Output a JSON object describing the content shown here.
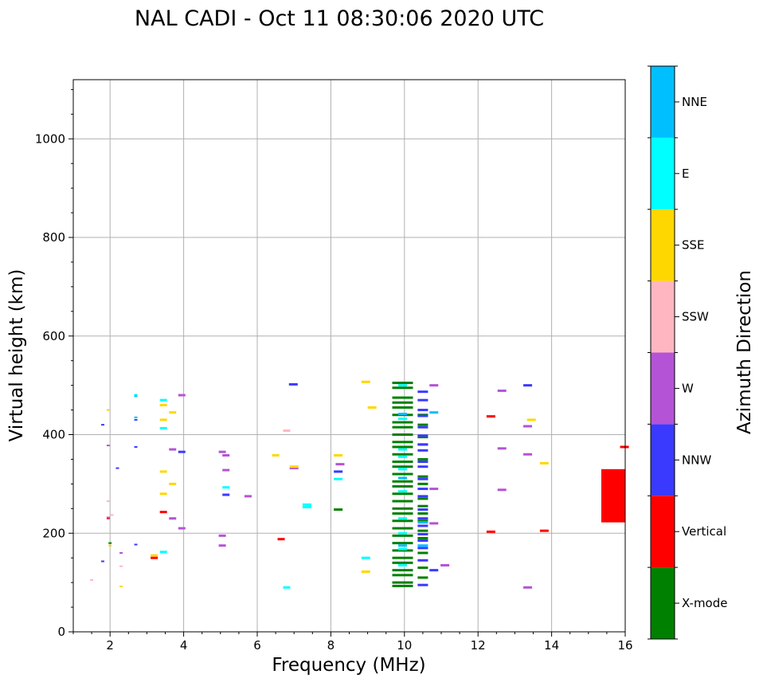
{
  "chart_data": {
    "type": "scatter",
    "title": "NAL CADI - Oct 11 08:30:06 2020 UTC",
    "xlabel": "Frequency (MHz)",
    "ylabel": "Virtual height (km)",
    "xlim": [
      1,
      16
    ],
    "ylim": [
      0,
      1120
    ],
    "xticks": [
      2,
      4,
      6,
      8,
      10,
      12,
      14,
      16
    ],
    "yticks": [
      0,
      200,
      400,
      600,
      800,
      1000
    ],
    "grid": true,
    "colorbar": {
      "label": "Azimuth Direction",
      "categories": [
        {
          "name": "X-mode",
          "color": "#008000"
        },
        {
          "name": "Vertical",
          "color": "#ff0000"
        },
        {
          "name": "NNW",
          "color": "#3a3aff"
        },
        {
          "name": "W",
          "color": "#b553d6"
        },
        {
          "name": "SSW",
          "color": "#ffb6c1"
        },
        {
          "name": "SSE",
          "color": "#ffd700"
        },
        {
          "name": "E",
          "color": "#00ffff"
        },
        {
          "name": "NNE",
          "color": "#00bfff"
        }
      ]
    },
    "series": [
      {
        "category": "X-mode",
        "points": [
          [
            9.95,
            505
          ],
          [
            9.95,
            495
          ],
          [
            9.95,
            475
          ],
          [
            9.95,
            465
          ],
          [
            9.95,
            455
          ],
          [
            9.95,
            440
          ],
          [
            9.95,
            425
          ],
          [
            9.95,
            415
          ],
          [
            9.95,
            400
          ],
          [
            9.95,
            385
          ],
          [
            9.95,
            375
          ],
          [
            9.95,
            360
          ],
          [
            9.95,
            345
          ],
          [
            9.95,
            335
          ],
          [
            9.95,
            320
          ],
          [
            9.95,
            305
          ],
          [
            9.95,
            295
          ],
          [
            9.95,
            280
          ],
          [
            9.95,
            265
          ],
          [
            9.95,
            250
          ],
          [
            9.95,
            240
          ],
          [
            9.95,
            225
          ],
          [
            9.95,
            210
          ],
          [
            9.95,
            195
          ],
          [
            9.95,
            180
          ],
          [
            9.95,
            165
          ],
          [
            9.95,
            150
          ],
          [
            9.95,
            140
          ],
          [
            9.95,
            125
          ],
          [
            9.95,
            115
          ],
          [
            9.95,
            100
          ],
          [
            9.95,
            93
          ],
          [
            10.5,
            440
          ],
          [
            10.5,
            420
          ],
          [
            10.5,
            395
          ],
          [
            10.5,
            380
          ],
          [
            10.5,
            350
          ],
          [
            10.5,
            315
          ],
          [
            10.5,
            300
          ],
          [
            10.5,
            270
          ],
          [
            10.5,
            255
          ],
          [
            10.5,
            240
          ],
          [
            10.5,
            225
          ],
          [
            10.5,
            205
          ],
          [
            10.5,
            190
          ],
          [
            10.5,
            160
          ],
          [
            10.5,
            130
          ],
          [
            10.5,
            110
          ],
          [
            8.2,
            248
          ],
          [
            2.0,
            180
          ]
        ]
      },
      {
        "category": "Vertical",
        "points": [
          [
            12.35,
            437
          ],
          [
            6.65,
            188
          ],
          [
            13.8,
            205
          ],
          [
            12.35,
            203
          ],
          [
            3.45,
            243
          ],
          [
            1.95,
            230
          ],
          [
            3.2,
            150
          ],
          [
            15.98,
            375
          ]
        ]
      },
      {
        "category": "NNW",
        "points": [
          [
            6.98,
            502
          ],
          [
            13.35,
            500
          ],
          [
            10.5,
            487
          ],
          [
            10.5,
            470
          ],
          [
            10.5,
            450
          ],
          [
            10.5,
            438
          ],
          [
            10.5,
            415
          ],
          [
            10.5,
            398
          ],
          [
            10.5,
            380
          ],
          [
            10.5,
            368
          ],
          [
            10.5,
            345
          ],
          [
            10.5,
            335
          ],
          [
            10.5,
            310
          ],
          [
            10.5,
            290
          ],
          [
            10.5,
            275
          ],
          [
            10.5,
            248
          ],
          [
            10.5,
            230
          ],
          [
            10.5,
            215
          ],
          [
            10.5,
            198
          ],
          [
            10.5,
            185
          ],
          [
            10.5,
            170
          ],
          [
            10.5,
            145
          ],
          [
            10.5,
            95
          ],
          [
            10.8,
            125
          ],
          [
            8.2,
            325
          ],
          [
            5.15,
            278
          ],
          [
            2.7,
            375
          ],
          [
            2.7,
            430
          ],
          [
            2.2,
            332
          ],
          [
            3.95,
            365
          ],
          [
            1.8,
            420
          ],
          [
            2.7,
            177
          ],
          [
            1.8,
            143
          ]
        ]
      },
      {
        "category": "W",
        "points": [
          [
            10.8,
            500
          ],
          [
            12.65,
            489
          ],
          [
            13.35,
            417
          ],
          [
            13.35,
            360
          ],
          [
            12.65,
            372
          ],
          [
            12.65,
            288
          ],
          [
            10.8,
            290
          ],
          [
            10.8,
            220
          ],
          [
            11.1,
            135
          ],
          [
            13.35,
            90
          ],
          [
            8.25,
            340
          ],
          [
            7.0,
            332
          ],
          [
            5.75,
            275
          ],
          [
            5.05,
            365
          ],
          [
            5.15,
            358
          ],
          [
            5.15,
            328
          ],
          [
            5.05,
            195
          ],
          [
            5.05,
            175
          ],
          [
            3.7,
            370
          ],
          [
            3.7,
            230
          ],
          [
            3.95,
            480
          ],
          [
            3.95,
            210
          ],
          [
            2.3,
            160
          ],
          [
            1.95,
            232
          ],
          [
            1.95,
            378
          ]
        ]
      },
      {
        "category": "SSW",
        "points": [
          [
            6.8,
            408
          ],
          [
            2.05,
            237
          ],
          [
            1.5,
            105
          ],
          [
            2.3,
            133
          ],
          [
            1.95,
            265
          ]
        ]
      },
      {
        "category": "SSE",
        "points": [
          [
            8.95,
            507
          ],
          [
            9.12,
            455
          ],
          [
            13.45,
            430
          ],
          [
            13.8,
            342
          ],
          [
            8.2,
            358
          ],
          [
            6.5,
            358
          ],
          [
            7.0,
            335
          ],
          [
            8.95,
            122
          ],
          [
            3.7,
            445
          ],
          [
            3.7,
            300
          ],
          [
            3.45,
            460
          ],
          [
            3.45,
            430
          ],
          [
            3.45,
            325
          ],
          [
            3.45,
            280
          ],
          [
            3.2,
            155
          ],
          [
            2.3,
            92
          ],
          [
            1.95,
            450
          ],
          [
            2.0,
            175
          ]
        ]
      },
      {
        "category": "E",
        "points": [
          [
            9.95,
            500
          ],
          [
            9.95,
            432
          ],
          [
            9.95,
            370
          ],
          [
            9.95,
            355
          ],
          [
            9.95,
            330
          ],
          [
            9.95,
            285
          ],
          [
            9.95,
            230
          ],
          [
            9.95,
            200
          ],
          [
            9.95,
            168
          ],
          [
            9.95,
            135
          ],
          [
            8.95,
            150
          ],
          [
            7.35,
            258
          ],
          [
            7.35,
            253
          ],
          [
            6.8,
            90
          ],
          [
            8.2,
            310
          ],
          [
            5.15,
            293
          ],
          [
            3.45,
            470
          ],
          [
            3.45,
            413
          ],
          [
            3.45,
            162
          ],
          [
            2.7,
            481
          ]
        ]
      },
      {
        "category": "NNE",
        "points": [
          [
            9.95,
            442
          ],
          [
            9.95,
            312
          ],
          [
            9.95,
            175
          ],
          [
            10.5,
            222
          ],
          [
            10.5,
            175
          ],
          [
            10.8,
            445
          ],
          [
            2.7,
            478
          ],
          [
            2.7,
            435
          ]
        ]
      }
    ],
    "annotations": [
      {
        "category": "Vertical",
        "type": "region",
        "x": [
          15.35,
          16.0
        ],
        "y": [
          222,
          330
        ]
      }
    ]
  }
}
